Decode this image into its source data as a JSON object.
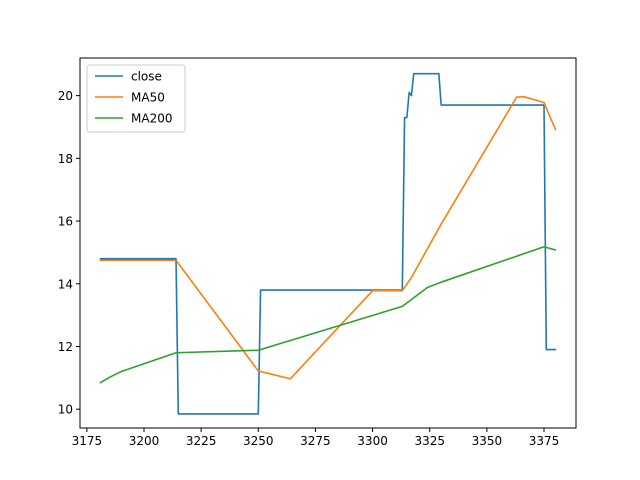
{
  "chart_data": {
    "type": "line",
    "title": "",
    "xlabel": "",
    "ylabel": "",
    "xlim": [
      3172,
      3389
    ],
    "ylim": [
      9.4,
      21.2
    ],
    "x_ticks": [
      3175,
      3200,
      3225,
      3250,
      3275,
      3300,
      3325,
      3350,
      3375
    ],
    "y_ticks": [
      10,
      12,
      14,
      16,
      18,
      20
    ],
    "grid": false,
    "legend_position": "top-left",
    "series": [
      {
        "name": "close",
        "color": "#1f77b4",
        "points": [
          [
            3181,
            14.8
          ],
          [
            3214,
            14.8
          ],
          [
            3215,
            9.85
          ],
          [
            3250,
            9.85
          ],
          [
            3251,
            13.8
          ],
          [
            3313,
            13.8
          ],
          [
            3314,
            19.3
          ],
          [
            3315,
            19.3
          ],
          [
            3316,
            20.1
          ],
          [
            3317,
            20.0
          ],
          [
            3318,
            20.7
          ],
          [
            3329,
            20.7
          ],
          [
            3330,
            19.7
          ],
          [
            3375,
            19.7
          ],
          [
            3376,
            11.9
          ],
          [
            3380,
            11.9
          ]
        ]
      },
      {
        "name": "MA50",
        "color": "#ff7f0e",
        "points": [
          [
            3181,
            14.75
          ],
          [
            3214,
            14.75
          ],
          [
            3250,
            11.22
          ],
          [
            3264,
            10.97
          ],
          [
            3300,
            13.78
          ],
          [
            3313,
            13.78
          ],
          [
            3317,
            14.2
          ],
          [
            3330,
            15.9
          ],
          [
            3363,
            19.95
          ],
          [
            3366,
            19.97
          ],
          [
            3375,
            19.78
          ],
          [
            3380,
            18.92
          ]
        ]
      },
      {
        "name": "MA200",
        "color": "#2ca02c",
        "points": [
          [
            3181,
            10.85
          ],
          [
            3185,
            11.02
          ],
          [
            3190,
            11.2
          ],
          [
            3214,
            11.8
          ],
          [
            3250,
            11.88
          ],
          [
            3313,
            13.28
          ],
          [
            3324,
            13.88
          ],
          [
            3330,
            14.05
          ],
          [
            3375,
            15.18
          ],
          [
            3380,
            15.08
          ]
        ]
      }
    ]
  }
}
